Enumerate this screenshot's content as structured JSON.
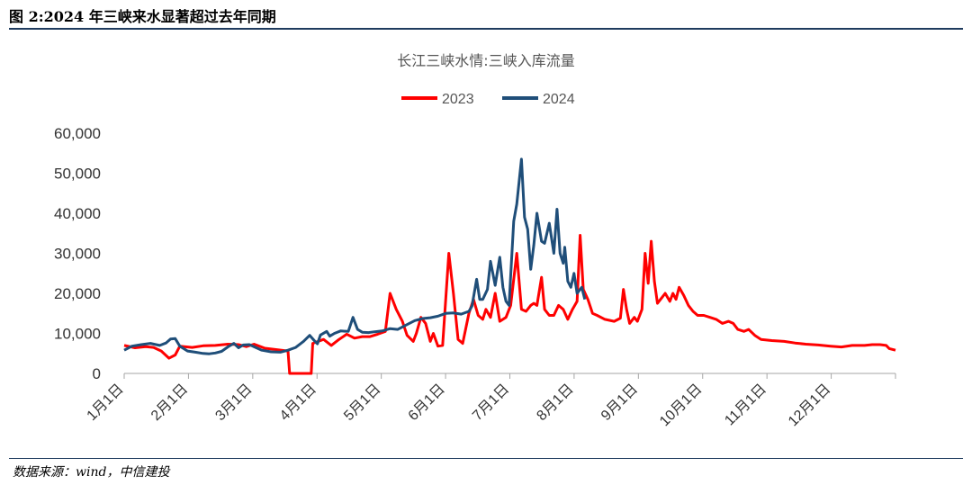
{
  "figure_title": "图 2:2024 年三峡来水显著超过去年同期",
  "source": "数据来源：wind，中信建投",
  "chart_data": {
    "type": "line",
    "title": "长江三峡水情:三峡入库流量",
    "xlabel": "",
    "ylabel": "",
    "ylim": [
      0,
      60000
    ],
    "yticks": [
      "0",
      "10,000",
      "20,000",
      "30,000",
      "40,000",
      "50,000",
      "60,000"
    ],
    "xticks": [
      "1月1日",
      "2月1日",
      "3月1日",
      "4月1日",
      "5月1日",
      "6月1日",
      "7月1日",
      "8月1日",
      "9月1日",
      "10月1日",
      "11月1日",
      "12月1日"
    ],
    "x_unit": "day of year",
    "grid": false,
    "legend": "top-center",
    "series": [
      {
        "name": "2023",
        "color": "#ff0000",
        "points": [
          [
            1,
            7000
          ],
          [
            8,
            6400
          ],
          [
            15,
            6700
          ],
          [
            20,
            6500
          ],
          [
            25,
            5600
          ],
          [
            30,
            3800
          ],
          [
            34,
            4600
          ],
          [
            37,
            6800
          ],
          [
            45,
            6500
          ],
          [
            52,
            6900
          ],
          [
            60,
            7000
          ],
          [
            68,
            7300
          ],
          [
            75,
            7200
          ],
          [
            80,
            6700
          ],
          [
            85,
            7300
          ],
          [
            92,
            6300
          ],
          [
            98,
            6000
          ],
          [
            107,
            5600
          ],
          [
            108,
            0
          ],
          [
            122,
            0
          ],
          [
            123,
            7500
          ],
          [
            130,
            8500
          ],
          [
            135,
            7000
          ],
          [
            140,
            8500
          ],
          [
            145,
            9800
          ],
          [
            150,
            8800
          ],
          [
            155,
            9200
          ],
          [
            160,
            9200
          ],
          [
            165,
            9800
          ],
          [
            170,
            10500
          ],
          [
            173,
            20000
          ],
          [
            177,
            16000
          ],
          [
            181,
            13000
          ],
          [
            184,
            9500
          ],
          [
            188,
            8000
          ],
          [
            190,
            10000
          ],
          [
            193,
            14000
          ],
          [
            196,
            12500
          ],
          [
            199,
            8000
          ],
          [
            201,
            10000
          ],
          [
            204,
            6800
          ],
          [
            207,
            7000
          ],
          [
            211,
            30000
          ],
          [
            214,
            20000
          ],
          [
            217,
            8500
          ],
          [
            220,
            7500
          ],
          [
            224,
            15000
          ],
          [
            227,
            18500
          ],
          [
            230,
            14500
          ],
          [
            233,
            13500
          ],
          [
            235,
            16000
          ],
          [
            238,
            14000
          ],
          [
            241,
            20000
          ],
          [
            244,
            13000
          ],
          [
            248,
            14000
          ],
          [
            251,
            17000
          ],
          [
            255,
            30000
          ],
          [
            258,
            16000
          ],
          [
            261,
            15500
          ],
          [
            264,
            17000
          ],
          [
            266,
            17500
          ],
          [
            268,
            17000
          ],
          [
            271,
            24000
          ],
          [
            273,
            16000
          ],
          [
            276,
            14500
          ],
          [
            279,
            14500
          ],
          [
            282,
            17000
          ],
          [
            285,
            16000
          ],
          [
            288,
            13500
          ],
          [
            291,
            16000
          ],
          [
            294,
            18000
          ],
          [
            296,
            34500
          ],
          [
            298,
            21000
          ],
          [
            301,
            18500
          ],
          [
            304,
            15000
          ],
          [
            307,
            14500
          ],
          [
            312,
            13500
          ],
          [
            318,
            13000
          ],
          [
            322,
            13800
          ],
          [
            324,
            21000
          ],
          [
            326,
            16000
          ],
          [
            328,
            12500
          ],
          [
            331,
            14000
          ],
          [
            333,
            13000
          ],
          [
            336,
            16000
          ],
          [
            338,
            30000
          ],
          [
            340,
            22500
          ],
          [
            342,
            33000
          ],
          [
            344,
            23000
          ],
          [
            346,
            17500
          ],
          [
            349,
            19000
          ],
          [
            351,
            20000
          ],
          [
            354,
            18000
          ],
          [
            356,
            20000
          ],
          [
            358,
            18500
          ],
          [
            360,
            21500
          ],
          [
            363,
            19500
          ],
          [
            366,
            17000
          ],
          [
            369,
            15500
          ],
          [
            372,
            14500
          ],
          [
            376,
            14500
          ],
          [
            380,
            14000
          ],
          [
            384,
            13500
          ],
          [
            388,
            12500
          ],
          [
            392,
            13000
          ],
          [
            395,
            12500
          ],
          [
            398,
            11000
          ],
          [
            402,
            10500
          ],
          [
            405,
            11000
          ],
          [
            409,
            9500
          ],
          [
            413,
            8500
          ],
          [
            420,
            8200
          ],
          [
            428,
            8000
          ],
          [
            435,
            7600
          ],
          [
            442,
            7300
          ],
          [
            450,
            7100
          ],
          [
            458,
            6800
          ],
          [
            465,
            6600
          ],
          [
            472,
            7000
          ],
          [
            480,
            7000
          ],
          [
            485,
            7200
          ],
          [
            490,
            7200
          ],
          [
            494,
            7000
          ],
          [
            496,
            6200
          ],
          [
            500,
            5800
          ]
        ]
      },
      {
        "name": "2024",
        "color": "#1f4e79",
        "points": [
          [
            1,
            5800
          ],
          [
            6,
            6800
          ],
          [
            12,
            7200
          ],
          [
            18,
            7500
          ],
          [
            24,
            7000
          ],
          [
            28,
            7600
          ],
          [
            31,
            8600
          ],
          [
            34,
            8700
          ],
          [
            37,
            6800
          ],
          [
            42,
            5600
          ],
          [
            47,
            5300
          ],
          [
            52,
            5000
          ],
          [
            56,
            4900
          ],
          [
            60,
            5100
          ],
          [
            64,
            5500
          ],
          [
            68,
            6600
          ],
          [
            72,
            7500
          ],
          [
            75,
            6400
          ],
          [
            78,
            7100
          ],
          [
            82,
            7200
          ],
          [
            86,
            6500
          ],
          [
            90,
            5800
          ],
          [
            96,
            5400
          ],
          [
            102,
            5300
          ],
          [
            107,
            5800
          ],
          [
            112,
            6500
          ],
          [
            117,
            8000
          ],
          [
            121,
            9500
          ],
          [
            124,
            8200
          ],
          [
            126,
            7400
          ],
          [
            128,
            9600
          ],
          [
            132,
            10500
          ],
          [
            134,
            9300
          ],
          [
            137,
            10000
          ],
          [
            141,
            10600
          ],
          [
            146,
            10500
          ],
          [
            149,
            14000
          ],
          [
            152,
            11000
          ],
          [
            155,
            10300
          ],
          [
            159,
            10200
          ],
          [
            163,
            10400
          ],
          [
            168,
            10600
          ],
          [
            173,
            11200
          ],
          [
            178,
            11000
          ],
          [
            183,
            12000
          ],
          [
            189,
            13200
          ],
          [
            194,
            13700
          ],
          [
            199,
            13900
          ],
          [
            204,
            14300
          ],
          [
            209,
            15000
          ],
          [
            214,
            15100
          ],
          [
            219,
            14800
          ],
          [
            224,
            15500
          ],
          [
            226,
            16800
          ],
          [
            229,
            23500
          ],
          [
            231,
            18500
          ],
          [
            233,
            18500
          ],
          [
            236,
            21000
          ],
          [
            238,
            28000
          ],
          [
            241,
            22000
          ],
          [
            244,
            29000
          ],
          [
            246,
            21500
          ],
          [
            248,
            18000
          ],
          [
            250,
            17000
          ],
          [
            253,
            38000
          ],
          [
            255,
            42300
          ],
          [
            258,
            53500
          ],
          [
            260,
            39000
          ],
          [
            262,
            36000
          ],
          [
            264,
            26000
          ],
          [
            266,
            32000
          ],
          [
            268,
            40000
          ],
          [
            271,
            33000
          ],
          [
            273,
            32500
          ],
          [
            276,
            37500
          ],
          [
            279,
            30000
          ],
          [
            281,
            41000
          ],
          [
            283,
            30000
          ],
          [
            285,
            27500
          ],
          [
            286,
            31500
          ],
          [
            288,
            23000
          ],
          [
            290,
            21500
          ],
          [
            292,
            25000
          ],
          [
            294,
            20000
          ],
          [
            297,
            21500
          ],
          [
            299,
            18500
          ]
        ]
      }
    ]
  }
}
